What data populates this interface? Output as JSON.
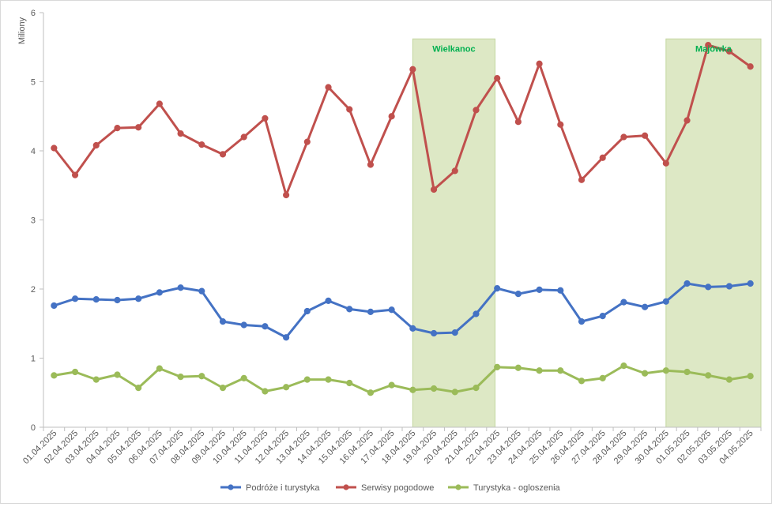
{
  "chart_data": {
    "type": "line",
    "title": "",
    "xlabel": "",
    "ylabel": "Miliony",
    "ylim": [
      0,
      6
    ],
    "yticks": [
      "0",
      "1",
      "2",
      "3",
      "4",
      "5",
      "6"
    ],
    "grid": "none",
    "legend_position": "bottom",
    "categories": [
      "01.04.2025",
      "02.04.2025",
      "03.04.2025",
      "04.04.2025",
      "05.04.2025",
      "06.04.2025",
      "07.04.2025",
      "08.04.2025",
      "09.04.2025",
      "10.04.2025",
      "11.04.2025",
      "12.04.2025",
      "13.04.2025",
      "14.04.2025",
      "15.04.2025",
      "16.04.2025",
      "17.04.2025",
      "18.04.2025",
      "19.04.2025",
      "20.04.2025",
      "21.04.2025",
      "22.04.2025",
      "23.04.2025",
      "24.04.2025",
      "25.04.2025",
      "26.04.2025",
      "27.04.2025",
      "28.04.2025",
      "29.04.2025",
      "30.04.2025",
      "01.05.2025",
      "02.05.2025",
      "03.05.2025",
      "04.05.2025"
    ],
    "series": [
      {
        "name": "Podróże i turystyka",
        "color": "#4472c4",
        "values": [
          1.76,
          1.86,
          1.85,
          1.84,
          1.86,
          1.95,
          2.02,
          1.97,
          1.53,
          1.48,
          1.46,
          1.3,
          1.68,
          1.83,
          1.71,
          1.67,
          1.7,
          1.43,
          1.36,
          1.37,
          1.64,
          2.01,
          1.93,
          1.99,
          1.98,
          1.53,
          1.61,
          1.81,
          1.74,
          1.82,
          2.08,
          2.03,
          2.04,
          2.08
        ]
      },
      {
        "name": "Serwisy pogodowe",
        "color": "#c0504d",
        "values": [
          4.04,
          3.65,
          4.08,
          4.33,
          4.34,
          4.68,
          4.25,
          4.09,
          3.95,
          4.2,
          4.47,
          3.36,
          4.13,
          4.92,
          4.6,
          3.8,
          4.5,
          5.18,
          3.44,
          3.71,
          4.59,
          5.05,
          4.42,
          5.26,
          4.38,
          3.58,
          3.9,
          4.2,
          4.22,
          3.82,
          4.44,
          5.53,
          5.44,
          5.22
        ]
      },
      {
        "name": "Turystyka - ogloszenia",
        "color": "#9bbb59",
        "values": [
          0.75,
          0.8,
          0.69,
          0.76,
          0.57,
          0.85,
          0.73,
          0.74,
          0.57,
          0.71,
          0.52,
          0.58,
          0.69,
          0.69,
          0.64,
          0.5,
          0.61,
          0.54,
          0.56,
          0.51,
          0.57,
          0.87,
          0.86,
          0.82,
          0.82,
          0.67,
          0.71,
          0.89,
          0.78,
          0.82,
          0.8,
          0.75,
          0.69,
          0.74
        ]
      }
    ],
    "highlights": [
      {
        "label": "Wielkanoc",
        "from": "18.04.2025",
        "to": "21.04.2025",
        "color": "#d8e4bc"
      },
      {
        "label": "Majówka",
        "from": "30.04.2025",
        "to": "04.05.2025",
        "color": "#d8e4bc"
      }
    ]
  }
}
